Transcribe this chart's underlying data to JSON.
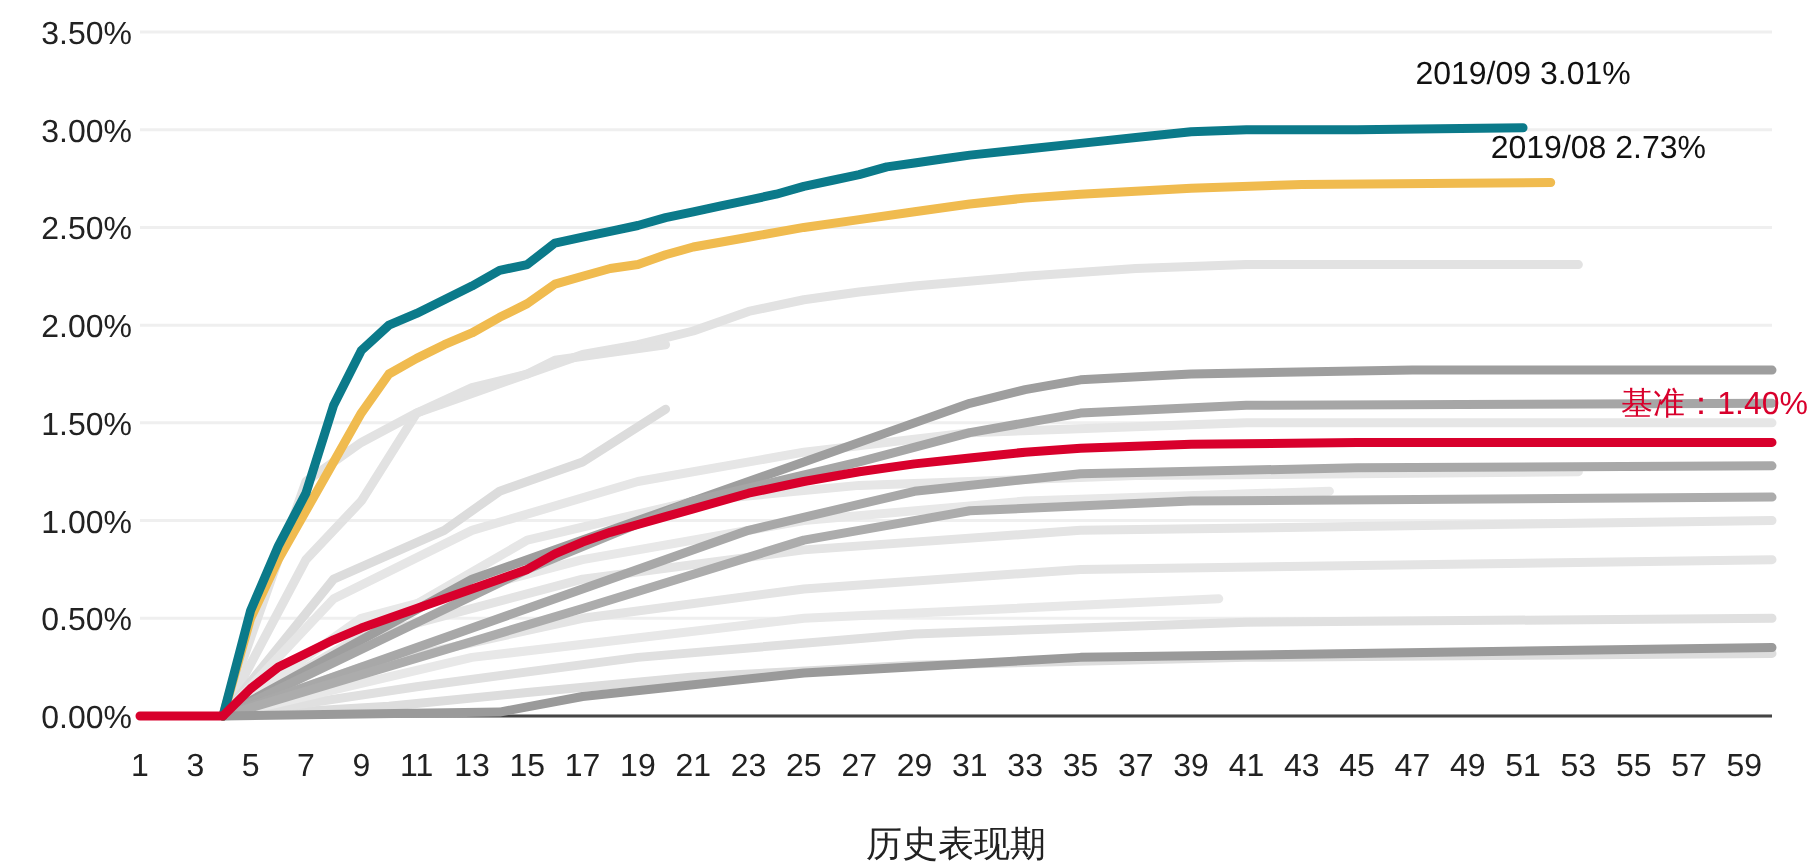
{
  "chart_data": {
    "type": "line",
    "xlabel": "历史表现期",
    "xlim": [
      1,
      60
    ],
    "xticks": [
      1,
      3,
      5,
      7,
      9,
      11,
      13,
      15,
      17,
      19,
      21,
      23,
      25,
      27,
      29,
      31,
      33,
      35,
      37,
      39,
      41,
      43,
      45,
      47,
      49,
      51,
      53,
      55,
      57,
      59
    ],
    "ylim": [
      0,
      3.5
    ],
    "yticks": [
      {
        "value": 0,
        "label": "0.00%"
      },
      {
        "value": 0.5,
        "label": "0.50%"
      },
      {
        "value": 1,
        "label": "1.00%"
      },
      {
        "value": 1.5,
        "label": "1.50%"
      },
      {
        "value": 2,
        "label": "2.00%"
      },
      {
        "value": 2.5,
        "label": "2.50%"
      },
      {
        "value": 3,
        "label": "3.00%"
      },
      {
        "value": 3.5,
        "label": "3.50%"
      }
    ],
    "grid": "y",
    "series": [
      {
        "color": "#e2e2e2",
        "x": [
          4,
          7,
          9,
          11,
          13,
          15,
          17,
          19,
          21,
          23,
          25,
          27,
          29,
          33,
          37,
          41,
          53
        ],
        "values": [
          0,
          1.2,
          1.4,
          1.55,
          1.65,
          1.75,
          1.85,
          1.9,
          1.97,
          2.07,
          2.13,
          2.17,
          2.2,
          2.25,
          2.29,
          2.31,
          2.31
        ]
      },
      {
        "color": "#e2e2e2",
        "x": [
          4,
          7,
          9,
          11,
          13,
          15,
          16,
          20
        ],
        "values": [
          0,
          0.8,
          1.1,
          1.55,
          1.68,
          1.75,
          1.82,
          1.9
        ]
      },
      {
        "color": "#dcdcdc",
        "x": [
          4,
          8,
          12,
          14,
          17,
          20
        ],
        "values": [
          0,
          0.7,
          0.95,
          1.15,
          1.3,
          1.57
        ]
      },
      {
        "color": "#e6e6e6",
        "x": [
          4,
          15,
          21,
          27,
          37,
          53
        ],
        "values": [
          0,
          0.9,
          1.1,
          1.18,
          1.23,
          1.25
        ]
      },
      {
        "color": "#e6e6e6",
        "x": [
          4,
          8,
          13,
          19,
          25,
          31,
          41,
          60
        ],
        "values": [
          0,
          0.6,
          0.95,
          1.2,
          1.35,
          1.45,
          1.5,
          1.5
        ]
      },
      {
        "color": "#dddddd",
        "x": [
          4,
          10,
          15,
          21,
          29,
          41,
          60
        ],
        "values": [
          0,
          0.05,
          0.12,
          0.2,
          0.26,
          0.3,
          0.32
        ]
      },
      {
        "color": "#e0e0e0",
        "x": [
          4,
          11,
          19,
          29,
          41,
          60
        ],
        "values": [
          0,
          0.15,
          0.3,
          0.42,
          0.48,
          0.5
        ]
      },
      {
        "color": "#e4e4e4",
        "x": [
          4,
          9,
          17,
          25,
          35,
          60
        ],
        "values": [
          0,
          0.25,
          0.5,
          0.65,
          0.75,
          0.8
        ]
      },
      {
        "color": "#e4e4e4",
        "x": [
          4,
          9,
          17,
          25,
          35,
          60
        ],
        "values": [
          0,
          0.4,
          0.7,
          0.85,
          0.95,
          1.0
        ]
      },
      {
        "color": "#e8e8e8",
        "x": [
          4,
          9,
          17,
          25,
          33,
          44
        ],
        "values": [
          0,
          0.5,
          0.8,
          1.0,
          1.1,
          1.15
        ]
      },
      {
        "color": "#e8e8e8",
        "x": [
          4,
          13,
          25,
          40
        ],
        "values": [
          0,
          0.3,
          0.5,
          0.6
        ]
      },
      {
        "color": "#9e9e9e",
        "x": [
          4,
          13,
          17,
          21,
          25,
          28,
          31,
          33,
          35,
          39,
          47,
          60
        ],
        "values": [
          0,
          0.7,
          0.9,
          1.1,
          1.3,
          1.45,
          1.6,
          1.67,
          1.72,
          1.75,
          1.77,
          1.77
        ]
      },
      {
        "color": "#a6a6a6",
        "x": [
          4,
          15,
          21,
          27,
          31,
          35,
          41,
          60
        ],
        "values": [
          0,
          0.75,
          1.1,
          1.3,
          1.45,
          1.55,
          1.59,
          1.6
        ]
      },
      {
        "color": "#a8a8a8",
        "x": [
          4,
          15,
          23,
          29,
          35,
          45,
          60
        ],
        "values": [
          0,
          0.55,
          0.95,
          1.15,
          1.24,
          1.27,
          1.28
        ]
      },
      {
        "color": "#acacac",
        "x": [
          4,
          17,
          25,
          31,
          39,
          60
        ],
        "values": [
          0,
          0.55,
          0.9,
          1.05,
          1.1,
          1.12
        ]
      },
      {
        "color": "#9a9a9a",
        "x": [
          4,
          14,
          17,
          25,
          35,
          60
        ],
        "values": [
          0,
          0.02,
          0.1,
          0.22,
          0.3,
          0.35
        ]
      },
      {
        "color": "#f0bb4f",
        "x": [
          4,
          5,
          6,
          7,
          8,
          9,
          10,
          11,
          12,
          13,
          14,
          15,
          16,
          17,
          18,
          19,
          20,
          21,
          23,
          25,
          27,
          29,
          31,
          33,
          35,
          39,
          43,
          52
        ],
        "values": [
          0,
          0.5,
          0.8,
          1.05,
          1.3,
          1.55,
          1.75,
          1.83,
          1.9,
          1.96,
          2.04,
          2.11,
          2.21,
          2.25,
          2.29,
          2.31,
          2.36,
          2.4,
          2.45,
          2.5,
          2.54,
          2.58,
          2.62,
          2.65,
          2.67,
          2.7,
          2.72,
          2.73
        ]
      },
      {
        "color": "#0b7a8a",
        "x": [
          4,
          5,
          6,
          7,
          8,
          9,
          10,
          11,
          12,
          13,
          14,
          15,
          16,
          17,
          18,
          19,
          20,
          21,
          22,
          23,
          24,
          25,
          26,
          27,
          28,
          29,
          30,
          31,
          33,
          35,
          37,
          39,
          41,
          45,
          51
        ],
        "values": [
          0,
          0.54,
          0.87,
          1.14,
          1.59,
          1.87,
          2.0,
          2.06,
          2.13,
          2.2,
          2.28,
          2.31,
          2.42,
          2.45,
          2.48,
          2.51,
          2.55,
          2.58,
          2.61,
          2.64,
          2.67,
          2.71,
          2.74,
          2.77,
          2.81,
          2.83,
          2.85,
          2.87,
          2.9,
          2.93,
          2.96,
          2.99,
          3.0,
          3.0,
          3.01
        ]
      },
      {
        "color": "#d8002c",
        "x": [
          1,
          2,
          3,
          4,
          5,
          6,
          7,
          8,
          9,
          10,
          11,
          12,
          13,
          14,
          15,
          16,
          17,
          18,
          19,
          20,
          21,
          23,
          25,
          27,
          29,
          31,
          33,
          35,
          39,
          45,
          60
        ],
        "values": [
          0,
          0,
          0,
          0,
          0.14,
          0.25,
          0.32,
          0.39,
          0.45,
          0.5,
          0.55,
          0.6,
          0.65,
          0.7,
          0.75,
          0.83,
          0.89,
          0.94,
          0.98,
          1.02,
          1.06,
          1.14,
          1.2,
          1.25,
          1.29,
          1.32,
          1.35,
          1.37,
          1.39,
          1.4,
          1.4
        ]
      }
    ],
    "annotations": [
      {
        "text": "2019/09 3.01%",
        "x": 51,
        "y": 3.01
      },
      {
        "text": "2019/08 2.73%",
        "x": 52,
        "y": 2.73
      },
      {
        "text": "基准：1.40%",
        "x": 60,
        "y": 1.4
      }
    ]
  }
}
